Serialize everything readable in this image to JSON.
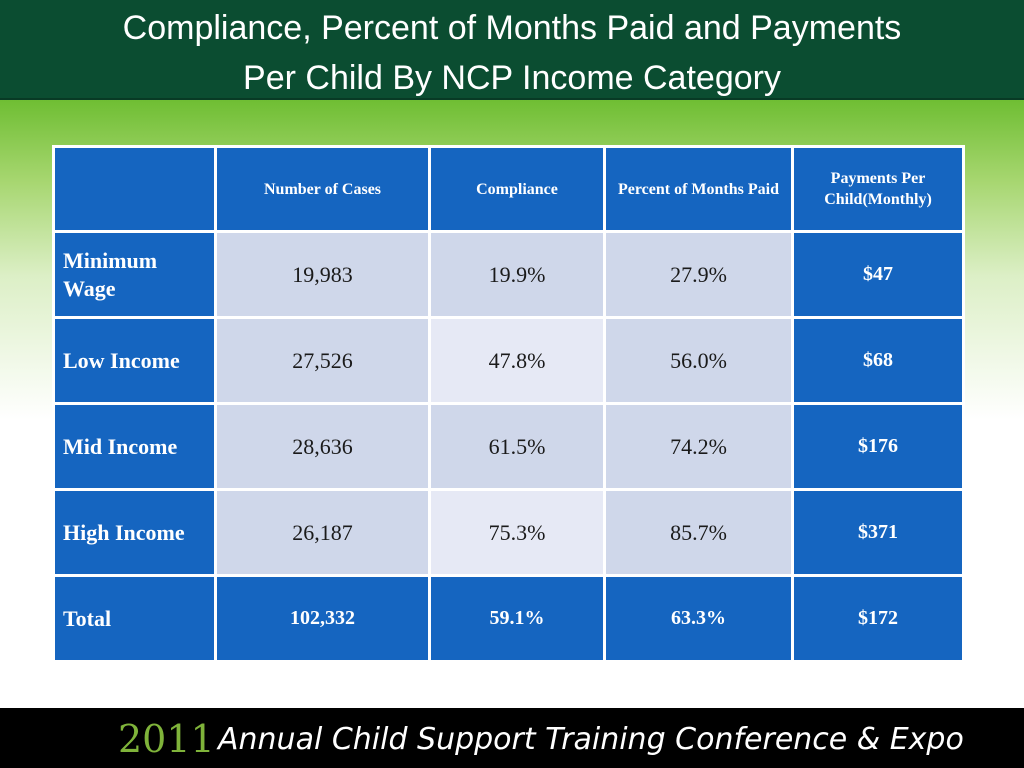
{
  "slide": {
    "title_line1": "Compliance, Percent of Months Paid and Payments",
    "title_line2": "Per Child By NCP Income Category"
  },
  "table": {
    "headers": [
      "",
      "Number of Cases",
      "Compliance",
      "Percent of Months Paid",
      "Payments Per Child(Monthly)"
    ],
    "rows": [
      {
        "label": "Minimum Wage",
        "cases": "19,983",
        "compliance": "19.9%",
        "months_paid": "27.9%",
        "payments": "$47"
      },
      {
        "label": "Low Income",
        "cases": "27,526",
        "compliance": "47.8%",
        "months_paid": "56.0%",
        "payments": "$68"
      },
      {
        "label": "Mid Income",
        "cases": "28,636",
        "compliance": "61.5%",
        "months_paid": "74.2%",
        "payments": "$176"
      },
      {
        "label": "High Income",
        "cases": "26,187",
        "compliance": "75.3%",
        "months_paid": "85.7%",
        "payments": "$371"
      }
    ],
    "total": {
      "label": "Total",
      "cases": "102,332",
      "compliance": "59.1%",
      "months_paid": "63.3%",
      "payments": "$172"
    }
  },
  "footer": {
    "year": "2011",
    "text": "Annual Child Support Training Conference & Expo"
  },
  "colors": {
    "title_bg": "#0b4d31",
    "table_blue": "#1565c0",
    "cell_light": "#cfd7ea",
    "footer_year": "#7fb33a"
  }
}
